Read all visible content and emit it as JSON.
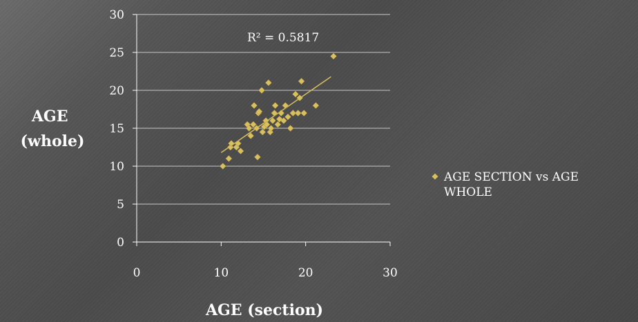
{
  "colors": {
    "marker": "#d8c060",
    "trendline": "#d8c060",
    "gridline": "#c8c8c8",
    "axis": "#ffffff",
    "text": "#ffffff"
  },
  "chart_data": {
    "type": "scatter",
    "title": "",
    "xlabel": "AGE (section)",
    "ylabel_lines": [
      "AGE",
      "(whole)"
    ],
    "xlim": [
      0,
      30
    ],
    "ylim": [
      0,
      30
    ],
    "x_ticks": [
      0,
      10,
      20,
      30
    ],
    "y_ticks": [
      0,
      5,
      10,
      15,
      20,
      25,
      30
    ],
    "grid": "horizontal",
    "legend": "right",
    "r_squared_label": "R² = 0.5817",
    "trendline": {
      "from": [
        10,
        11.8
      ],
      "to": [
        23,
        21.8
      ]
    },
    "series": [
      {
        "name_lines": [
          "AGE SECTION vs AGE",
          "WHOLE"
        ],
        "points": [
          [
            10.2,
            10
          ],
          [
            10.9,
            11
          ],
          [
            11.1,
            12.5
          ],
          [
            11.2,
            13
          ],
          [
            11.8,
            12.5
          ],
          [
            12.0,
            13
          ],
          [
            12.3,
            12
          ],
          [
            13.1,
            15.5
          ],
          [
            13.3,
            15
          ],
          [
            13.5,
            14
          ],
          [
            13.8,
            15.5
          ],
          [
            13.9,
            18
          ],
          [
            14.2,
            15
          ],
          [
            14.3,
            11.2
          ],
          [
            14.4,
            17
          ],
          [
            14.5,
            17.2
          ],
          [
            14.8,
            20
          ],
          [
            14.9,
            14.5
          ],
          [
            15.1,
            15.2
          ],
          [
            15.3,
            16
          ],
          [
            15.4,
            15.5
          ],
          [
            15.6,
            21
          ],
          [
            15.8,
            14.5
          ],
          [
            15.9,
            15
          ],
          [
            16.1,
            16
          ],
          [
            16.3,
            17
          ],
          [
            16.4,
            18
          ],
          [
            16.7,
            15.5
          ],
          [
            16.9,
            16.2
          ],
          [
            17.1,
            17
          ],
          [
            17.4,
            16
          ],
          [
            17.6,
            18
          ],
          [
            17.9,
            16.5
          ],
          [
            18.2,
            15
          ],
          [
            18.5,
            17
          ],
          [
            18.8,
            19.5
          ],
          [
            19.1,
            17
          ],
          [
            19.3,
            19
          ],
          [
            19.5,
            21.2
          ],
          [
            19.8,
            17
          ],
          [
            21.2,
            18
          ],
          [
            23.3,
            24.5
          ]
        ]
      }
    ]
  }
}
